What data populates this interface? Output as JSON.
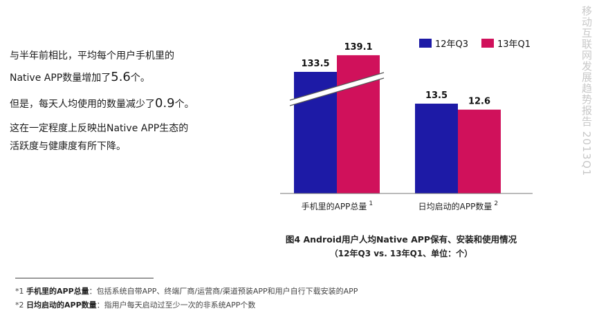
{
  "side_title": "移动互联网发展趋势报告 2013Q1",
  "left_text": {
    "p1_line1": "与半年前相比，平均每个用户手机里的",
    "p1_line2_prefix": "Native APP数量增加了",
    "p1_big": "5.6",
    "p1_suffix": "个。",
    "p2_prefix": "但是，每天人均使用的数量减少了",
    "p2_big": "0.9",
    "p2_suffix": "个。",
    "p3_line1": "这在一定程度上反映出Native APP生态的",
    "p3_line2": "活跃度与健康度有所下降。"
  },
  "caption": {
    "title": "图4 Android用户人均Native APP保有、安装和使用情况",
    "subtitle": "（12年Q3 vs. 13年Q1、单位：个）"
  },
  "footnotes": [
    {
      "marker": "*1 ",
      "term": "手机里的APP总量",
      "text": "：包括系统自带APP、终端厂商/运营商/渠道预装APP和用户自行下载安装的APP"
    },
    {
      "marker": "*2 ",
      "term": "日均启动的APP数量",
      "text": "：指用户每天启动过至少一次的非系统APP个数"
    }
  ],
  "colors": {
    "series1": "#1d1aa6",
    "series2": "#d0115b",
    "axis": "#777777",
    "side_title": "#c8c8c8"
  },
  "chart_data": {
    "type": "bar",
    "title": "图4 Android用户人均Native APP保有、安装和使用情况",
    "categories": [
      "手机里的APP总量",
      "日均启动的APP数量"
    ],
    "category_superscripts": [
      "1",
      "2"
    ],
    "series": [
      {
        "name": "12年Q3",
        "values": [
          133.5,
          13.5
        ],
        "labels": [
          "133.5",
          "13.5"
        ]
      },
      {
        "name": "13年Q1",
        "values": [
          139.1,
          12.6
        ],
        "labels": [
          "139.1",
          "12.6"
        ]
      }
    ],
    "axis_break": true,
    "legend": "top-right",
    "grid": false,
    "xlabel": "",
    "ylabel": ""
  }
}
